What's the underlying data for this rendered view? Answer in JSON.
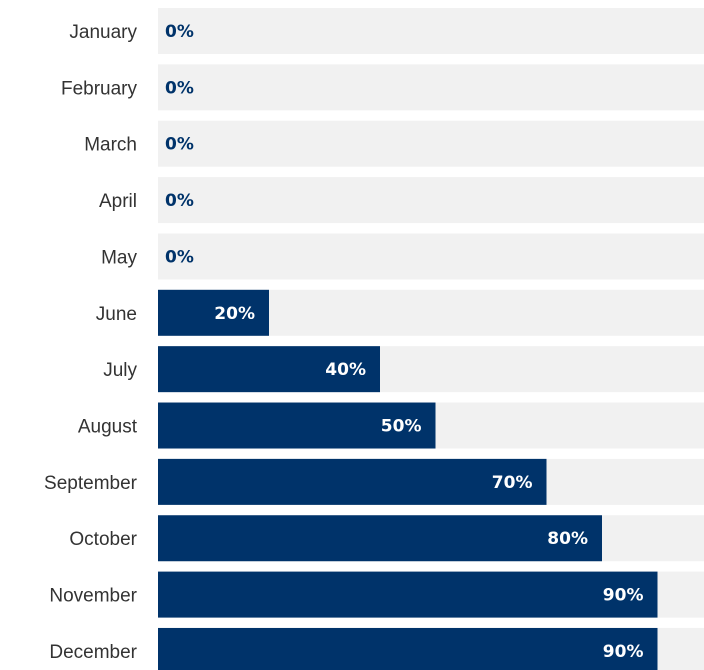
{
  "chart_data": {
    "type": "bar",
    "orientation": "horizontal",
    "categories": [
      "January",
      "February",
      "March",
      "April",
      "May",
      "June",
      "July",
      "August",
      "September",
      "October",
      "November",
      "December"
    ],
    "values": [
      0,
      0,
      0,
      0,
      0,
      20,
      40,
      50,
      70,
      80,
      90,
      90
    ],
    "value_labels": [
      "0%",
      "0%",
      "0%",
      "0%",
      "0%",
      "20%",
      "40%",
      "50%",
      "70%",
      "80%",
      "90%",
      "90%"
    ],
    "xlim": [
      0,
      100
    ],
    "title": "",
    "xlabel": "",
    "ylabel": "",
    "grid": false,
    "legend": "none",
    "colors": {
      "bar": "#00336a",
      "track": "#f1f1f1",
      "label_on_bar": "#ffffff",
      "label_outside": "#00336a",
      "category_text": "#333333"
    }
  }
}
